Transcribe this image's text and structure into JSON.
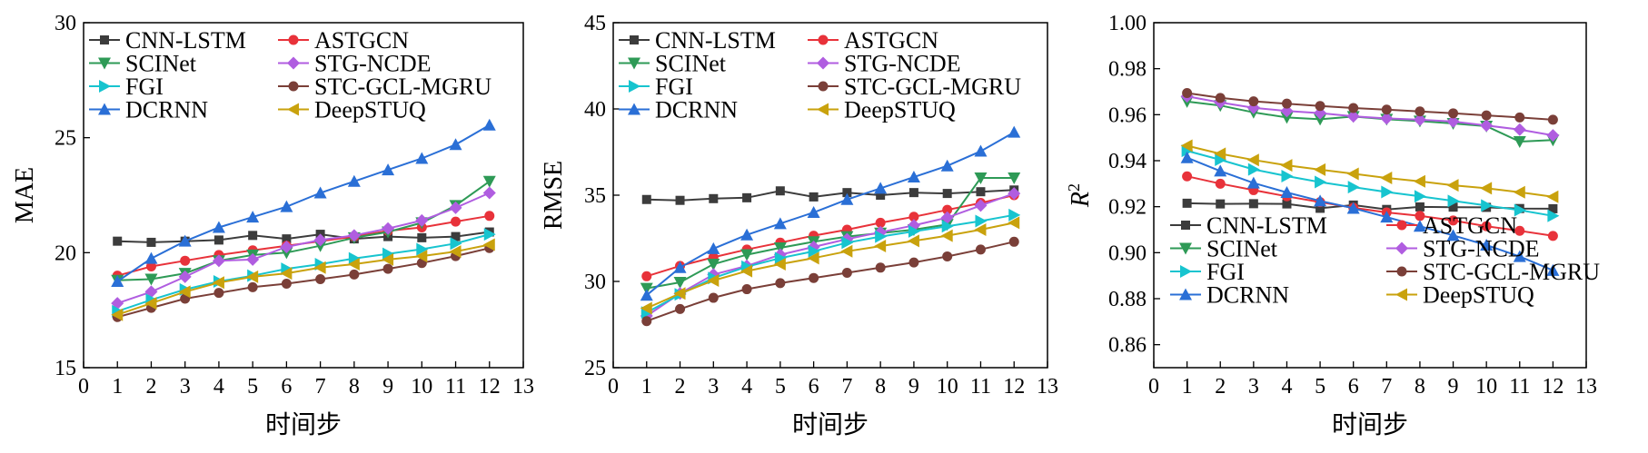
{
  "colors": {
    "CNN-LSTM": "#3c3c3c",
    "ASTGCN": "#e8323a",
    "SCINet": "#2e9a56",
    "STG-NCDE": "#b05de0",
    "FGI": "#17c4cf",
    "STC-GCL-MGRU": "#7a3f38",
    "DCRNN": "#2a6fd6",
    "DeepSTUQ": "#c9a20d"
  },
  "markers": {
    "CNN-LSTM": "square",
    "ASTGCN": "circle",
    "SCINet": "triangle-down",
    "STG-NCDE": "diamond",
    "FGI": "triangle-right",
    "STC-GCL-MGRU": "circle",
    "DCRNN": "triangle-up",
    "DeepSTUQ": "triangle-left"
  },
  "chart_data": [
    {
      "type": "line",
      "xlabel": "时间步",
      "ylabel": "MAE",
      "xlim": [
        0,
        13
      ],
      "ylim": [
        15,
        30
      ],
      "xticks": [
        "0",
        "1",
        "2",
        "3",
        "4",
        "5",
        "6",
        "7",
        "8",
        "9",
        "10",
        "11",
        "12",
        "13"
      ],
      "yticks": [
        "15",
        "20",
        "25",
        "30"
      ],
      "legend_placement": "top-left",
      "x": [
        1,
        2,
        3,
        4,
        5,
        6,
        7,
        8,
        9,
        10,
        11,
        12
      ],
      "series": [
        {
          "name": "CNN-LSTM",
          "values": [
            20.5,
            20.45,
            20.5,
            20.55,
            20.75,
            20.6,
            20.8,
            20.6,
            20.7,
            20.65,
            20.7,
            20.9
          ]
        },
        {
          "name": "ASTGCN",
          "values": [
            19.0,
            19.4,
            19.65,
            19.9,
            20.1,
            20.3,
            20.5,
            20.7,
            20.95,
            21.1,
            21.35,
            21.6
          ]
        },
        {
          "name": "SCINet",
          "values": [
            18.8,
            18.85,
            19.1,
            19.65,
            19.9,
            20.0,
            20.3,
            20.65,
            20.9,
            21.3,
            22.05,
            23.1
          ]
        },
        {
          "name": "STG-NCDE",
          "values": [
            17.8,
            18.3,
            18.95,
            19.65,
            19.7,
            20.25,
            20.55,
            20.75,
            21.05,
            21.4,
            21.95,
            22.6
          ]
        },
        {
          "name": "FGI",
          "values": [
            17.45,
            17.95,
            18.4,
            18.75,
            19.0,
            19.3,
            19.5,
            19.75,
            19.95,
            20.15,
            20.4,
            20.8
          ]
        },
        {
          "name": "STC-GCL-MGRU",
          "values": [
            17.2,
            17.6,
            18.0,
            18.25,
            18.5,
            18.65,
            18.85,
            19.05,
            19.3,
            19.55,
            19.85,
            20.2
          ]
        },
        {
          "name": "DCRNN",
          "values": [
            18.75,
            19.75,
            20.5,
            21.1,
            21.55,
            22.0,
            22.6,
            23.1,
            23.6,
            24.1,
            24.7,
            25.55
          ]
        },
        {
          "name": "DeepSTUQ",
          "values": [
            17.3,
            17.8,
            18.3,
            18.7,
            18.95,
            19.1,
            19.35,
            19.5,
            19.7,
            19.85,
            20.05,
            20.35
          ]
        }
      ]
    },
    {
      "type": "line",
      "xlabel": "时间步",
      "ylabel": "RMSE",
      "xlim": [
        0,
        13
      ],
      "ylim": [
        25,
        45
      ],
      "xticks": [
        "0",
        "1",
        "2",
        "3",
        "4",
        "5",
        "6",
        "7",
        "8",
        "9",
        "10",
        "11",
        "12",
        "13"
      ],
      "yticks": [
        "25",
        "30",
        "35",
        "40",
        "45"
      ],
      "legend_placement": "top-left",
      "x": [
        1,
        2,
        3,
        4,
        5,
        6,
        7,
        8,
        9,
        10,
        11,
        12
      ],
      "series": [
        {
          "name": "CNN-LSTM",
          "values": [
            34.75,
            34.7,
            34.8,
            34.85,
            35.25,
            34.9,
            35.15,
            35.0,
            35.15,
            35.1,
            35.2,
            35.3
          ]
        },
        {
          "name": "ASTGCN",
          "values": [
            30.3,
            30.9,
            31.4,
            31.85,
            32.25,
            32.65,
            33.0,
            33.4,
            33.75,
            34.15,
            34.55,
            35.0
          ]
        },
        {
          "name": "SCINet",
          "values": [
            29.6,
            29.95,
            31.0,
            31.55,
            31.95,
            32.3,
            32.6,
            32.8,
            33.0,
            33.3,
            36.0,
            36.0
          ]
        },
        {
          "name": "STG-NCDE",
          "values": [
            28.0,
            29.3,
            30.4,
            30.9,
            31.55,
            32.0,
            32.45,
            32.85,
            33.25,
            33.7,
            34.4,
            35.1
          ]
        },
        {
          "name": "FGI",
          "values": [
            28.2,
            29.25,
            30.2,
            30.85,
            31.35,
            31.75,
            32.25,
            32.6,
            32.9,
            33.2,
            33.5,
            33.85
          ]
        },
        {
          "name": "STC-GCL-MGRU",
          "values": [
            27.7,
            28.4,
            29.05,
            29.55,
            29.9,
            30.2,
            30.5,
            30.8,
            31.1,
            31.45,
            31.85,
            32.3
          ]
        },
        {
          "name": "DCRNN",
          "values": [
            29.2,
            30.8,
            31.9,
            32.7,
            33.35,
            34.0,
            34.75,
            35.4,
            36.05,
            36.7,
            37.55,
            38.65
          ]
        },
        {
          "name": "DeepSTUQ",
          "values": [
            28.45,
            29.3,
            30.05,
            30.6,
            31.0,
            31.35,
            31.75,
            32.05,
            32.35,
            32.65,
            33.0,
            33.4
          ]
        }
      ]
    },
    {
      "type": "line",
      "xlabel": "时间步",
      "ylabel": "R",
      "ylabel_sup": "2",
      "xlim": [
        0,
        13
      ],
      "ylim": [
        0.85,
        1.0
      ],
      "xticks": [
        "0",
        "1",
        "2",
        "3",
        "4",
        "5",
        "6",
        "7",
        "8",
        "9",
        "10",
        "11",
        "12",
        "13"
      ],
      "yticks": [
        "0.86",
        "0.88",
        "0.90",
        "0.92",
        "0.94",
        "0.96",
        "0.98",
        "1.00"
      ],
      "legend_placement": "bottom-left",
      "x": [
        1,
        2,
        3,
        4,
        5,
        6,
        7,
        8,
        9,
        10,
        11,
        12
      ],
      "series": [
        {
          "name": "CNN-LSTM",
          "values": [
            0.9215,
            0.9212,
            0.9213,
            0.9212,
            0.9193,
            0.9207,
            0.9188,
            0.9199,
            0.9198,
            0.9197,
            0.9192,
            0.9191
          ]
        },
        {
          "name": "ASTGCN",
          "values": [
            0.9332,
            0.93,
            0.9272,
            0.9245,
            0.922,
            0.9195,
            0.9175,
            0.916,
            0.914,
            0.9115,
            0.9095,
            0.9073
          ]
        },
        {
          "name": "SCINet",
          "values": [
            0.9657,
            0.964,
            0.961,
            0.9588,
            0.958,
            0.9592,
            0.958,
            0.9572,
            0.9562,
            0.955,
            0.9483,
            0.949
          ]
        },
        {
          "name": "STG-NCDE",
          "values": [
            0.968,
            0.9653,
            0.963,
            0.9616,
            0.9607,
            0.9593,
            0.9584,
            0.9578,
            0.957,
            0.9553,
            0.9535,
            0.951
          ]
        },
        {
          "name": "FGI",
          "values": [
            0.9443,
            0.9404,
            0.9362,
            0.9333,
            0.9307,
            0.9285,
            0.9264,
            0.9245,
            0.9225,
            0.9205,
            0.9185,
            0.916
          ]
        },
        {
          "name": "STC-GCL-MGRU",
          "values": [
            0.9694,
            0.9673,
            0.9658,
            0.9648,
            0.9638,
            0.9629,
            0.9622,
            0.9614,
            0.9606,
            0.9597,
            0.9588,
            0.9578
          ]
        },
        {
          "name": "DCRNN",
          "values": [
            0.9413,
            0.9355,
            0.9303,
            0.9262,
            0.9225,
            0.9193,
            0.9155,
            0.9115,
            0.9075,
            0.9033,
            0.8983,
            0.8923
          ]
        },
        {
          "name": "DeepSTUQ",
          "values": [
            0.9465,
            0.943,
            0.9403,
            0.938,
            0.9361,
            0.9343,
            0.9325,
            0.931,
            0.9293,
            0.928,
            0.9263,
            0.9243
          ]
        }
      ]
    }
  ]
}
